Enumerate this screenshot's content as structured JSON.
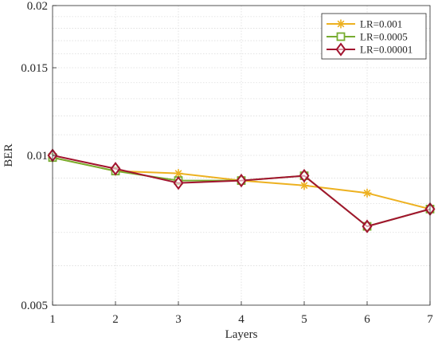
{
  "chart_data": {
    "type": "line",
    "xlabel": "Layers",
    "ylabel": "BER",
    "x": [
      1,
      2,
      3,
      4,
      5,
      6,
      7
    ],
    "xlim": [
      1,
      7
    ],
    "ylim": [
      0.005,
      0.02
    ],
    "yscale": "log",
    "x_ticks": [
      "1",
      "2",
      "3",
      "4",
      "5",
      "6",
      "7"
    ],
    "y_ticks": [
      {
        "value": 0.005,
        "label": "0.005"
      },
      {
        "value": 0.01,
        "label": "0.01"
      },
      {
        "value": 0.015,
        "label": "0.015"
      },
      {
        "value": 0.02,
        "label": "0.02"
      }
    ],
    "grid": true,
    "legend_position": "top-right",
    "series": [
      {
        "name": "LR=0.001",
        "color": "#EDB120",
        "marker": "asterisk",
        "values": [
          0.0099,
          0.0093,
          0.0092,
          0.0089,
          0.0087,
          0.0084,
          0.0078
        ]
      },
      {
        "name": "LR=0.0005",
        "color": "#77AC30",
        "marker": "square",
        "values": [
          0.0099,
          0.0093,
          0.0089,
          0.0089,
          0.0091,
          0.0072,
          0.0078
        ]
      },
      {
        "name": "LR=0.00001",
        "color": "#A2142F",
        "marker": "diamond",
        "values": [
          0.01,
          0.0094,
          0.0088,
          0.0089,
          0.0091,
          0.0072,
          0.0078
        ]
      }
    ]
  }
}
